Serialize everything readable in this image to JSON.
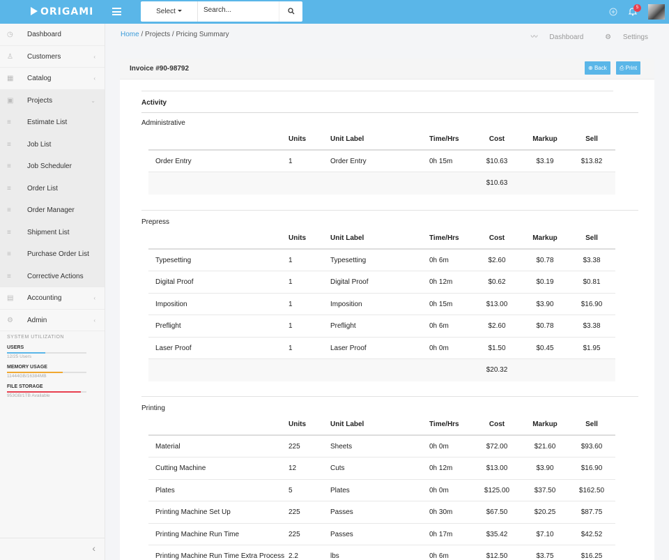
{
  "app": {
    "logo": "ORIGAMI",
    "search": {
      "select_label": "Select",
      "placeholder": "Search..."
    },
    "notifications_count": "5"
  },
  "sidebar": {
    "items": [
      {
        "label": "Dashboard",
        "icon": "dashboard-icon",
        "chevron": ""
      },
      {
        "label": "Customers",
        "icon": "users-icon",
        "chevron": "‹"
      },
      {
        "label": "Catalog",
        "icon": "grid-icon",
        "chevron": "‹"
      },
      {
        "label": "Projects",
        "icon": "briefcase-icon",
        "chevron": "⌄"
      },
      {
        "label": "Estimate List",
        "icon": "list-icon",
        "chevron": ""
      },
      {
        "label": "Job List",
        "icon": "list-icon",
        "chevron": ""
      },
      {
        "label": "Job Scheduler",
        "icon": "list-icon",
        "chevron": ""
      },
      {
        "label": "Order List",
        "icon": "list-icon",
        "chevron": ""
      },
      {
        "label": "Order Manager",
        "icon": "list-icon",
        "chevron": ""
      },
      {
        "label": "Shipment List",
        "icon": "list-icon",
        "chevron": ""
      },
      {
        "label": "Purchase Order List",
        "icon": "list-icon",
        "chevron": ""
      },
      {
        "label": "Corrective Actions",
        "icon": "list-icon",
        "chevron": ""
      },
      {
        "label": "Accounting",
        "icon": "calculator-icon",
        "chevron": "‹"
      },
      {
        "label": "Admin",
        "icon": "gear-icon",
        "chevron": "‹"
      }
    ],
    "utilization_title": "SYSTEM UTILIZATION",
    "utilization": [
      {
        "title": "USERS",
        "sub": "12/25 Users",
        "fraction": 0.48,
        "color": "#5ab6e8"
      },
      {
        "title": "MEMORY USAGE",
        "sub": "11444GB/16384MB",
        "fraction": 0.7,
        "color": "#f0a830"
      },
      {
        "title": "FILE STORAGE",
        "sub": "953GB/1TB Available",
        "fraction": 0.93,
        "color": "#e8404f"
      }
    ]
  },
  "breadcrumb": {
    "home": "Home",
    "rest": " / Projects / Pricing Summary"
  },
  "quicklinks": {
    "dashboard": "Dashboard",
    "settings": "Settings"
  },
  "card": {
    "title": "Invoice #90-98792",
    "back_label": "Back",
    "print_label": "Print",
    "activity_label": "Activity",
    "columns": [
      "Units",
      "Unit Label",
      "Time/Hrs",
      "Cost",
      "Markup",
      "Sell"
    ],
    "sections": [
      {
        "name": "Administrative",
        "rows": [
          {
            "item": "Order Entry",
            "units": "1",
            "unit_label": "Order Entry",
            "time": "0h 15m",
            "cost": "$10.63",
            "markup": "$3.19",
            "sell": "$13.82"
          }
        ],
        "total_cost": "$10.63"
      },
      {
        "name": "Prepress",
        "rows": [
          {
            "item": "Typesetting",
            "units": "1",
            "unit_label": "Typesetting",
            "time": "0h 6m",
            "cost": "$2.60",
            "markup": "$0.78",
            "sell": "$3.38"
          },
          {
            "item": "Digital Proof",
            "units": "1",
            "unit_label": "Digital Proof",
            "time": "0h 12m",
            "cost": "$0.62",
            "markup": "$0.19",
            "sell": "$0.81"
          },
          {
            "item": "Imposition",
            "units": "1",
            "unit_label": "Imposition",
            "time": "0h 15m",
            "cost": "$13.00",
            "markup": "$3.90",
            "sell": "$16.90"
          },
          {
            "item": "Preflight",
            "units": "1",
            "unit_label": "Preflight",
            "time": "0h 6m",
            "cost": "$2.60",
            "markup": "$0.78",
            "sell": "$3.38"
          },
          {
            "item": "Laser Proof",
            "units": "1",
            "unit_label": "Laser Proof",
            "time": "0h 0m",
            "cost": "$1.50",
            "markup": "$0.45",
            "sell": "$1.95"
          }
        ],
        "total_cost": "$20.32"
      },
      {
        "name": "Printing",
        "rows": [
          {
            "item": "Material",
            "units": "225",
            "unit_label": "Sheets",
            "time": "0h 0m",
            "cost": "$72.00",
            "markup": "$21.60",
            "sell": "$93.60"
          },
          {
            "item": "Cutting Machine",
            "units": "12",
            "unit_label": "Cuts",
            "time": "0h 12m",
            "cost": "$13.00",
            "markup": "$3.90",
            "sell": "$16.90"
          },
          {
            "item": "Plates",
            "units": "5",
            "unit_label": "Plates",
            "time": "0h 0m",
            "cost": "$125.00",
            "markup": "$37.50",
            "sell": "$162.50"
          },
          {
            "item": "Printing Machine Set Up",
            "units": "225",
            "unit_label": "Passes",
            "time": "0h 30m",
            "cost": "$67.50",
            "markup": "$20.25",
            "sell": "$87.75"
          },
          {
            "item": "Printing Machine Run Time",
            "units": "225",
            "unit_label": "Passes",
            "time": "0h 17m",
            "cost": "$35.42",
            "markup": "$7.10",
            "sell": "$42.52"
          },
          {
            "item": "Printing Machine Run Time Extra Process",
            "units": "2.2",
            "unit_label": "lbs",
            "time": "0h 6m",
            "cost": "$12.50",
            "markup": "$3.75",
            "sell": "$16.25"
          }
        ],
        "total_cost": ""
      }
    ]
  }
}
